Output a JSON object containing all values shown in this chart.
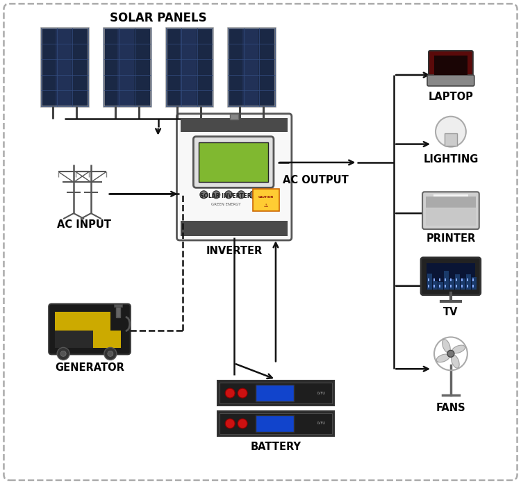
{
  "background_color": "#ffffff",
  "fig_width": 7.5,
  "fig_height": 6.97,
  "dpi": 100,
  "labels": {
    "solar_panels": "SOLAR PANELS",
    "inverter": "INVERTER",
    "ac_input": "AC INPUT",
    "generator": "GENERATOR",
    "battery": "BATTERY",
    "ac_output": "AC OUTPUT",
    "laptop": "LAPTOP",
    "lighting": "LIGHTING",
    "printer": "PRINTER",
    "tv": "TV",
    "fans": "FANS"
  },
  "panel_color_dark": "#1a2845",
  "panel_color_mid": "#1e3060",
  "panel_grid_color": "#2a4a7a",
  "panel_frame_color": "#888888",
  "wire_color": "#111111",
  "inverter_body_color": "#f5f5f5",
  "inverter_dark_strip": "#555555",
  "inverter_bottom_strip": "#444444",
  "lcd_color": "#7ab030",
  "lcd_line_color": "#3a6010",
  "battery_body": "#2a2a2a",
  "battery_red": "#cc1111",
  "battery_blue_display": "#1144aa",
  "generator_body": "#ccaa00",
  "generator_dark": "#222222",
  "tower_color": "#555555",
  "arrow_color": "#111111",
  "label_fontsize": 10.5,
  "label_fontweight": "bold"
}
